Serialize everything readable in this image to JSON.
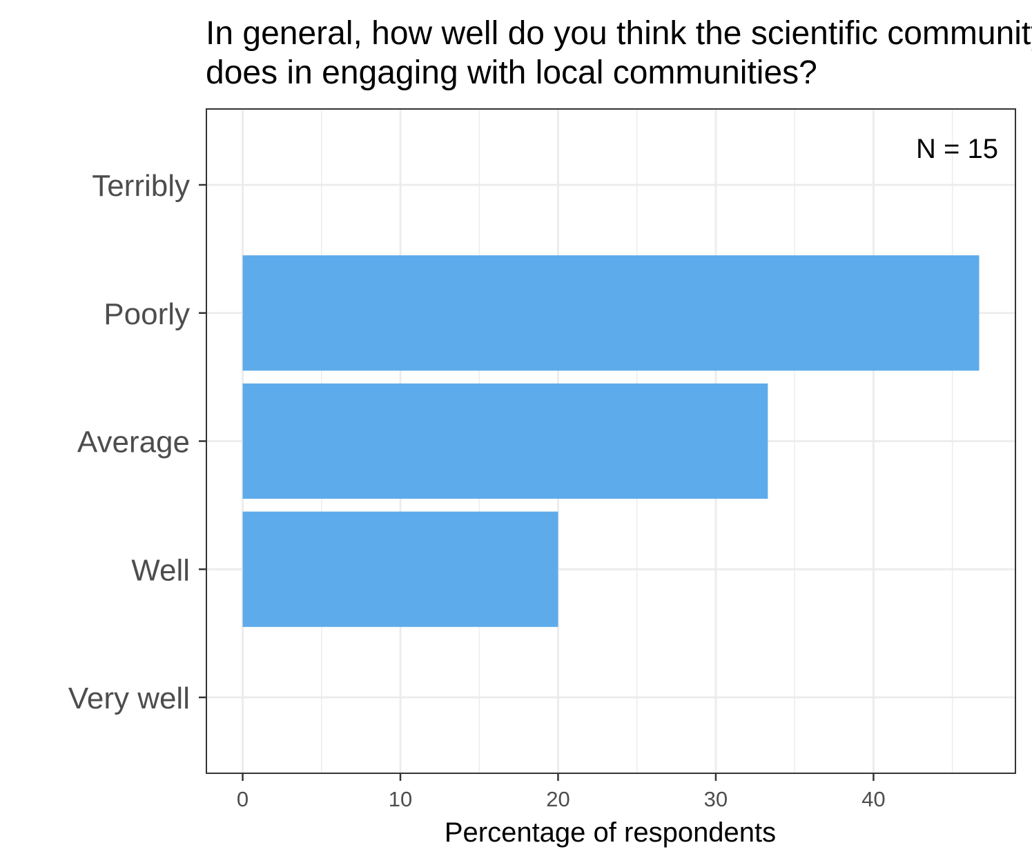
{
  "chart_data": {
    "type": "bar",
    "orientation": "horizontal",
    "title_lines": [
      "In general, how well do you think the scientific community",
      "does in engaging with local communities?"
    ],
    "categories": [
      "Terribly",
      "Poorly",
      "Average",
      "Well",
      "Very well"
    ],
    "values": [
      0,
      46.7,
      33.3,
      20,
      0
    ],
    "xlabel": "Percentage of respondents",
    "ylabel": "",
    "xlim": [
      -2.3,
      49.0
    ],
    "xticks": [
      0,
      10,
      20,
      30,
      40
    ],
    "grid": true,
    "annotation": "N = 15",
    "annotation_position": "top-right",
    "bar_color": "#5dabeb",
    "grid_color": "#ebebeb",
    "panel_border_color": "#333333"
  }
}
